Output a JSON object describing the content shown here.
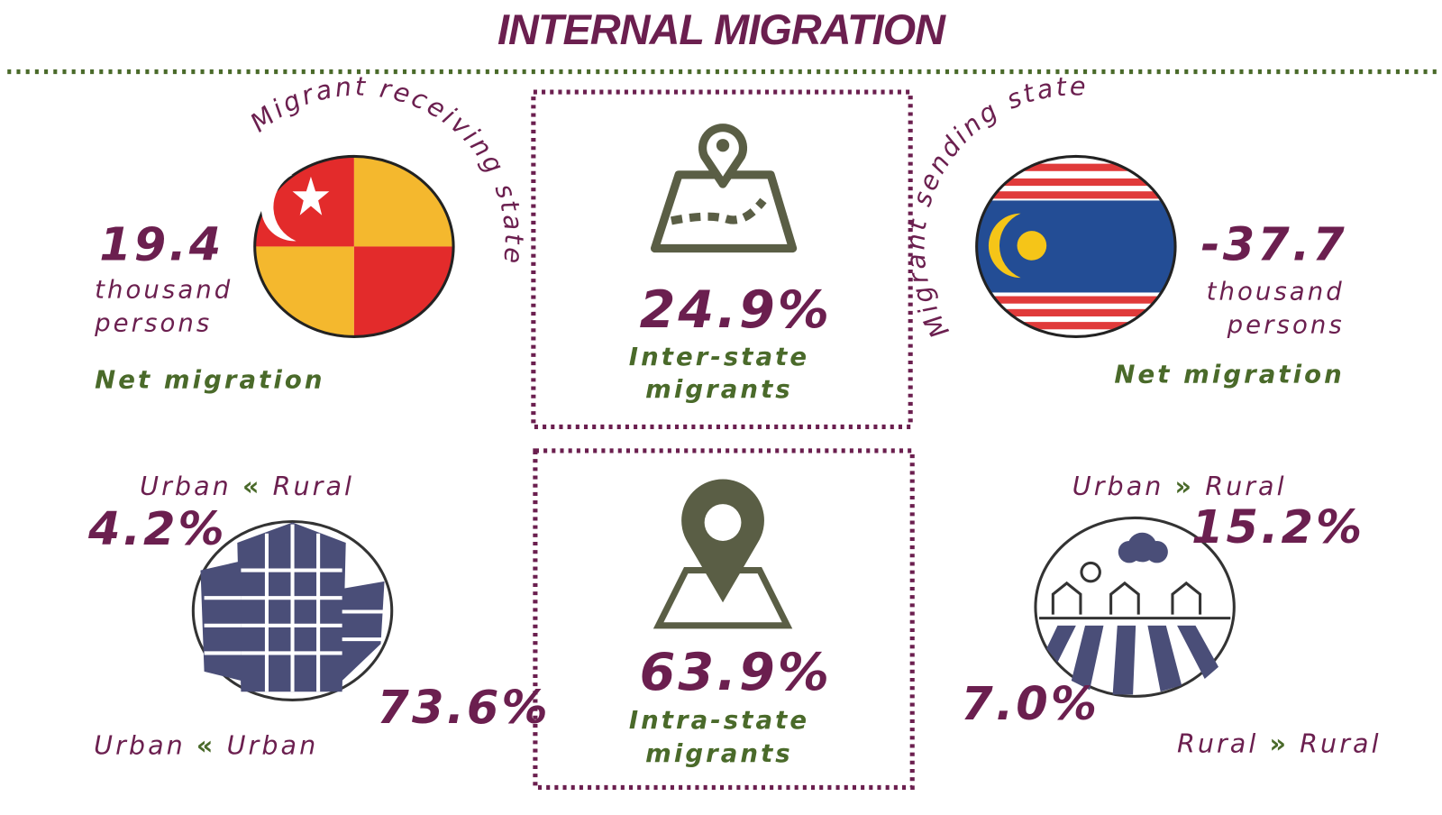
{
  "header": {
    "title": "INTERNAL MIGRATION"
  },
  "receiving": {
    "caption": "Migrant receiving state",
    "value": "19.4",
    "unit": [
      "thousand",
      "persons"
    ],
    "label": "Net migration"
  },
  "sending": {
    "caption": "Migrant sending state",
    "value": "-37.7",
    "unit": [
      "thousand",
      "persons"
    ],
    "label": "Net migration"
  },
  "inter_state": {
    "value": "24.9%",
    "label": [
      "Inter-state",
      "migrants"
    ]
  },
  "intra_state": {
    "value": "63.9%",
    "label": [
      "Intra-state",
      "migrants"
    ]
  },
  "urban_from_rural": {
    "from": "Urban",
    "arrow": "«",
    "to": "Rural",
    "value": "4.2%"
  },
  "urban_from_urban": {
    "from": "Urban",
    "arrow": "«",
    "to": "Urban",
    "value": "73.6%"
  },
  "rural_from_urban": {
    "from": "Urban",
    "arrow": "»",
    "to": "Rural",
    "value": "15.2%"
  },
  "rural_from_rural": {
    "from": "Rural",
    "arrow": "»",
    "to": "Rural",
    "value": "7.0%"
  }
}
